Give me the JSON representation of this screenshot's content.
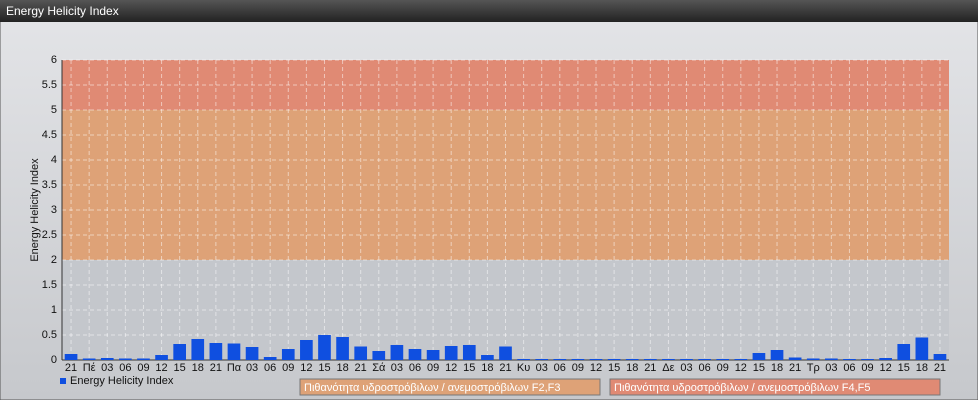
{
  "chart_data": {
    "type": "bar",
    "title": "Energy Helicity Index",
    "ylabel": "Energy Helicity Index",
    "categories": [
      "21",
      "Πέ",
      "03",
      "06",
      "09",
      "12",
      "15",
      "18",
      "21",
      "Πα",
      "03",
      "06",
      "09",
      "12",
      "15",
      "18",
      "21",
      "Σά",
      "03",
      "06",
      "09",
      "12",
      "15",
      "18",
      "21",
      "Κυ",
      "03",
      "06",
      "09",
      "12",
      "15",
      "18",
      "21",
      "Δε",
      "03",
      "06",
      "09",
      "12",
      "15",
      "18",
      "21",
      "Τρ",
      "03",
      "06",
      "09",
      "12",
      "15",
      "18",
      "21"
    ],
    "series": [
      {
        "name": "Energy Helicity Index",
        "color": "#0f4fe0",
        "values": [
          0.12,
          0.03,
          0.04,
          0.03,
          0.03,
          0.1,
          0.32,
          0.42,
          0.34,
          0.33,
          0.26,
          0.06,
          0.22,
          0.4,
          0.5,
          0.46,
          0.27,
          0.18,
          0.3,
          0.22,
          0.2,
          0.28,
          0.3,
          0.1,
          0.27,
          0.02,
          0.02,
          0.02,
          0.02,
          0.02,
          0.02,
          0.02,
          0.02,
          0.02,
          0.02,
          0.02,
          0.02,
          0.02,
          0.14,
          0.2,
          0.05,
          0.03,
          0.03,
          0.02,
          0.02,
          0.04,
          0.32,
          0.45,
          0.12
        ]
      }
    ],
    "bands": [
      {
        "from": 0,
        "to": 2,
        "color": "#c4c7cc"
      },
      {
        "from": 2,
        "to": 5,
        "color": "#dea277",
        "label": "Πιθανότητα υδροστρόβιλων / ανεμοστρόβιλων F2,F3"
      },
      {
        "from": 5,
        "to": 6,
        "color": "#e08a74",
        "label": "Πιθανότητα υδροστρόβιλων / ανεμοστρόβιλων F4,F5"
      }
    ],
    "ylim": [
      0,
      6
    ],
    "yticks": [
      0,
      0.5,
      1,
      1.5,
      2,
      2.5,
      3,
      3.5,
      4,
      4.5,
      5,
      5.5,
      6
    ],
    "grid": true
  }
}
